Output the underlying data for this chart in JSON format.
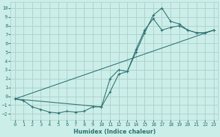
{
  "xlabel": "Humidex (Indice chaleur)",
  "bg_color": "#cceee8",
  "grid_color": "#aacccc",
  "line_color": "#2a7070",
  "xlim": [
    -0.5,
    23.5
  ],
  "ylim": [
    -2.7,
    10.7
  ],
  "xticks": [
    0,
    1,
    2,
    3,
    4,
    5,
    6,
    7,
    8,
    9,
    10,
    11,
    12,
    13,
    14,
    15,
    16,
    17,
    18,
    19,
    20,
    21,
    22,
    23
  ],
  "yticks": [
    -2,
    -1,
    0,
    1,
    2,
    3,
    4,
    5,
    6,
    7,
    8,
    9,
    10
  ],
  "curve1_x": [
    0,
    1,
    2,
    3,
    4,
    5,
    6,
    7,
    8,
    9,
    10,
    11,
    12,
    13,
    14,
    15,
    16,
    17,
    18,
    19,
    20,
    21,
    22,
    23
  ],
  "curve1_y": [
    -0.3,
    -0.5,
    -1.2,
    -1.5,
    -1.8,
    -1.9,
    -1.7,
    -1.8,
    -1.7,
    -1.2,
    -1.2,
    0.5,
    2.5,
    2.8,
    5.0,
    7.2,
    9.2,
    10.0,
    8.5,
    8.2,
    7.5,
    7.2,
    7.2,
    7.5
  ],
  "curve2_x": [
    0,
    10,
    11,
    12,
    13,
    14,
    15,
    16,
    17,
    18,
    19,
    20,
    21,
    22,
    23
  ],
  "curve2_y": [
    -0.3,
    -1.2,
    2.0,
    3.0,
    2.8,
    5.3,
    7.5,
    8.8,
    7.5,
    7.8,
    8.0,
    7.5,
    7.2,
    7.2,
    7.5
  ],
  "curve3_x": [
    0,
    23
  ],
  "curve3_y": [
    -0.3,
    7.5
  ]
}
